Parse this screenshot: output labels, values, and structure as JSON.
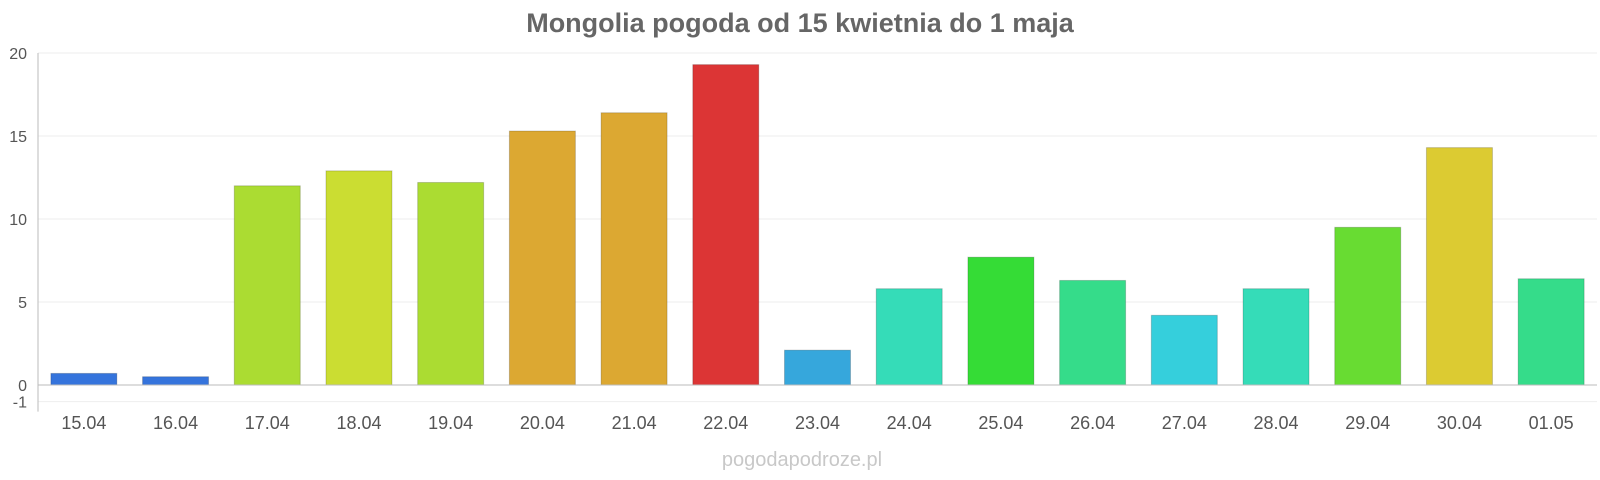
{
  "chart_data": {
    "type": "bar",
    "title": "Mongolia pogoda od 15 kwietnia do 1 maja",
    "xlabel": "",
    "ylabel": "",
    "ylim": [
      -1,
      20
    ],
    "yticks": [
      -1,
      0,
      5,
      10,
      15,
      20
    ],
    "grid": true,
    "categories": [
      "15.04",
      "16.04",
      "17.04",
      "18.04",
      "19.04",
      "20.04",
      "21.04",
      "22.04",
      "23.04",
      "24.04",
      "25.04",
      "26.04",
      "27.04",
      "28.04",
      "29.04",
      "30.04",
      "01.05"
    ],
    "values": [
      0.7,
      0.5,
      12.0,
      12.9,
      12.2,
      15.3,
      16.4,
      19.3,
      2.1,
      5.8,
      7.7,
      6.3,
      4.2,
      5.8,
      9.5,
      14.3,
      6.4
    ],
    "colors": [
      "#3574dc",
      "#3574dc",
      "#abdc32",
      "#cbdd32",
      "#abdc32",
      "#dca832",
      "#dca832",
      "#dc3535",
      "#36a7dc",
      "#35dcb8",
      "#35dc36",
      "#35dc8a",
      "#35cfdc",
      "#35dcb8",
      "#68dc32",
      "#dccb32",
      "#35dc8a"
    ]
  },
  "watermark": "pogodapodroze.pl"
}
